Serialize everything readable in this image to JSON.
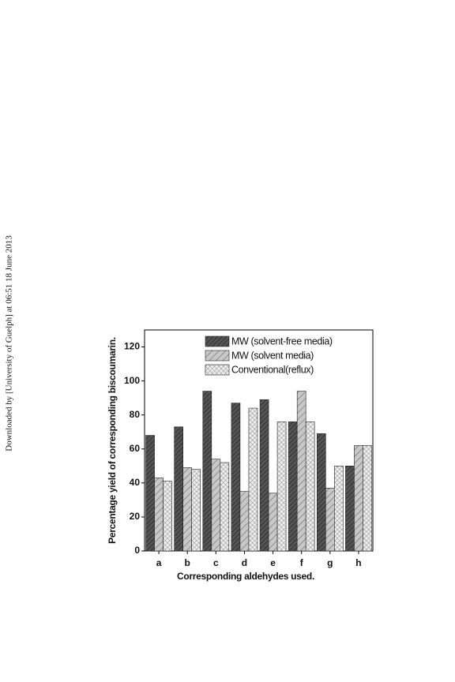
{
  "watermark": "Downloaded by [University of Guelph] at 06:51 18 June 2013",
  "chart_data": {
    "type": "bar",
    "xlabel": "Corresponding aldehydes used.",
    "ylabel": "Percentage yield of corresponding biscoumarin.",
    "categories": [
      "a",
      "b",
      "c",
      "d",
      "e",
      "f",
      "g",
      "h"
    ],
    "series": [
      {
        "name": "MW (solvent-free media)",
        "color": "#555555",
        "values": [
          68,
          73,
          94,
          87,
          89,
          76,
          69,
          50
        ]
      },
      {
        "name": "MW (solvent media)",
        "color": "#c8c8c8",
        "values": [
          43,
          49,
          54,
          35,
          34,
          94,
          37,
          62
        ]
      },
      {
        "name": "Conventional(reflux)",
        "color": "#e6e6e6",
        "values": [
          41,
          48,
          52,
          84,
          76,
          76,
          50,
          62
        ]
      }
    ],
    "ylim": [
      0,
      130
    ],
    "yticks": [
      0,
      20,
      40,
      60,
      80,
      100,
      120
    ],
    "legend": "upper-left"
  }
}
